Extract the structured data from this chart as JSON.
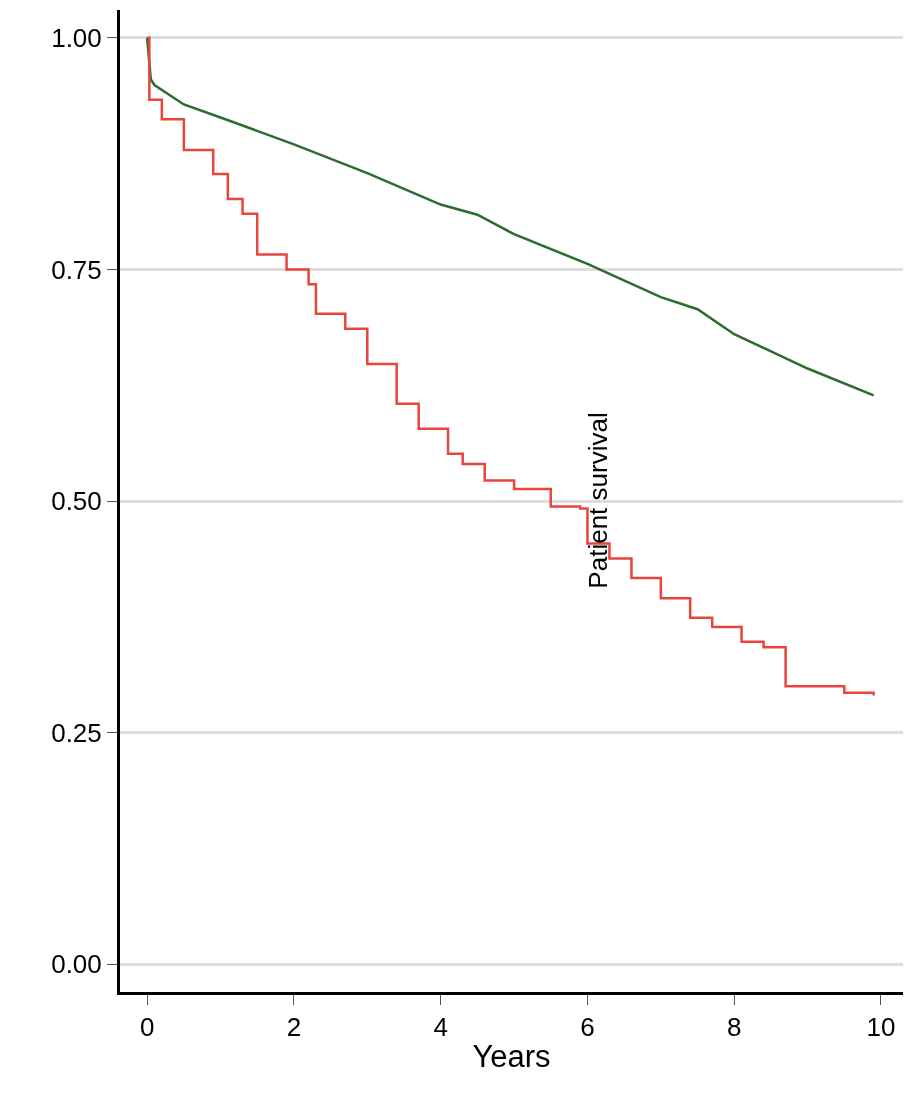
{
  "chart_data": {
    "type": "step",
    "xlabel": "Years",
    "annotations": [
      "Patient survival"
    ],
    "series": [
      {
        "type": "line",
        "color": "#2e6b2e",
        "x": [
          0,
          0.05,
          0.1,
          0.5,
          1,
          2,
          3,
          4,
          4.5,
          5,
          6,
          7,
          7.5,
          8,
          9,
          9.9
        ],
        "values": [
          1.0,
          0.955,
          0.949,
          0.928,
          0.914,
          0.885,
          0.854,
          0.82,
          0.809,
          0.788,
          0.756,
          0.72,
          0.707,
          0.68,
          0.643,
          0.614
        ]
      },
      {
        "color": "#e8453c",
        "x": [
          0,
          0.03,
          0.2,
          0.5,
          0.9,
          1.1,
          1.3,
          1.5,
          1.9,
          2.2,
          2.3,
          2.7,
          3,
          3.4,
          3.7,
          4.1,
          4.3,
          4.6,
          5,
          5.5,
          5.9,
          6,
          6.3,
          6.6,
          7,
          7.4,
          7.7,
          8.1,
          8.4,
          8.7,
          9.4,
          9.5,
          9.9
        ],
        "values": [
          1.0,
          0.933,
          0.912,
          0.879,
          0.853,
          0.826,
          0.81,
          0.766,
          0.75,
          0.734,
          0.702,
          0.686,
          0.648,
          0.605,
          0.578,
          0.551,
          0.54,
          0.522,
          0.513,
          0.494,
          0.492,
          0.454,
          0.438,
          0.417,
          0.395,
          0.374,
          0.364,
          0.348,
          0.342,
          0.3,
          0.3,
          0.293,
          0.29
        ]
      }
    ],
    "xlim": [
      -0.37,
      10.3
    ],
    "xticks": [
      0,
      2,
      4,
      6,
      8,
      10
    ],
    "ylim": [
      -0.03,
      1.03
    ],
    "yticks": [
      {
        "value": 0,
        "label": "0.00"
      },
      {
        "value": 0.25,
        "label": "0.25"
      },
      {
        "value": 0.5,
        "label": "0.50"
      },
      {
        "value": 0.75,
        "label": "0.75"
      },
      {
        "value": 1,
        "label": "1.00"
      }
    ],
    "grid": "y"
  }
}
